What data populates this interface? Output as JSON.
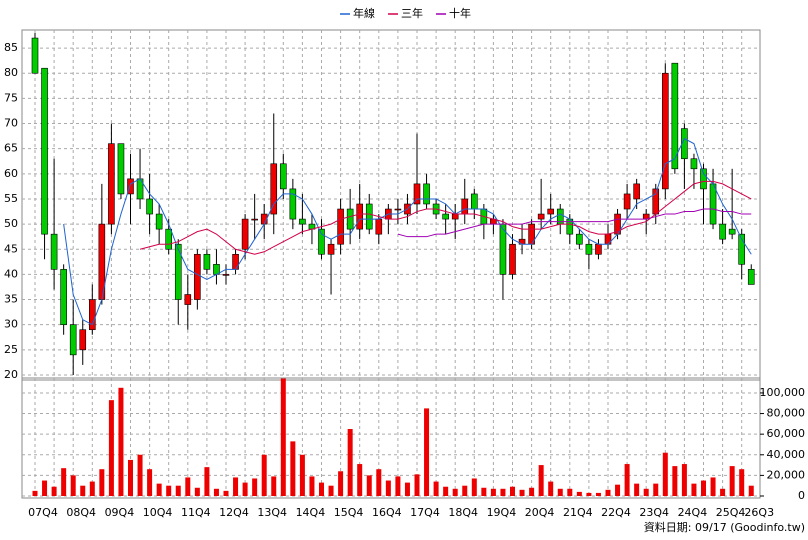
{
  "chart_data": {
    "type": "candlestick",
    "categories": [
      "07Q4",
      null,
      null,
      null,
      "08Q4",
      null,
      null,
      null,
      "09Q4",
      null,
      null,
      null,
      "10Q4",
      null,
      null,
      null,
      "11Q4",
      null,
      null,
      null,
      "12Q4",
      null,
      null,
      null,
      "13Q4",
      null,
      null,
      null,
      "14Q4",
      null,
      null,
      null,
      "15Q4",
      null,
      null,
      null,
      "16Q4",
      null,
      null,
      null,
      "17Q4",
      null,
      null,
      null,
      "18Q4",
      null,
      null,
      null,
      "19Q4",
      null,
      null,
      null,
      "20Q4",
      null,
      null,
      null,
      "21Q4",
      null,
      null,
      null,
      "22Q4",
      null,
      null,
      null,
      "23Q4",
      null,
      null,
      null,
      "24Q4",
      null,
      null,
      null,
      "25Q4",
      null,
      null,
      "26Q3"
    ],
    "open": [
      87,
      81,
      48,
      41,
      30,
      25,
      29,
      35,
      50,
      66,
      56,
      59,
      55,
      52,
      49,
      46,
      34,
      35,
      44,
      42,
      40,
      41,
      45,
      51,
      50,
      52,
      62,
      57,
      51,
      50,
      49,
      44,
      46,
      53,
      49,
      54,
      48,
      51,
      53,
      52,
      54,
      58,
      54,
      52,
      51,
      52,
      56,
      53,
      50,
      50,
      40,
      46,
      46,
      51,
      52,
      53,
      51,
      48,
      46,
      44,
      46,
      48,
      53,
      55,
      51,
      52,
      57,
      82,
      69,
      63,
      61,
      58,
      50,
      49,
      48,
      41
    ],
    "high": [
      88,
      81,
      63,
      42,
      35,
      31,
      38,
      58,
      70,
      66,
      64,
      65,
      60,
      54,
      51,
      47,
      40,
      45,
      45,
      45,
      42,
      45,
      52,
      56,
      54,
      72,
      64,
      59,
      56,
      52,
      51,
      47,
      55,
      57,
      58,
      56,
      52,
      54,
      55,
      56,
      68,
      60,
      55,
      54,
      54,
      59,
      57,
      54,
      52,
      51,
      48,
      50,
      51,
      59,
      56,
      54,
      52,
      49,
      47,
      47,
      50,
      53,
      58,
      59,
      53,
      58,
      82,
      82,
      70,
      64,
      62,
      61,
      53,
      61,
      49,
      42
    ],
    "low": [
      80,
      43,
      37,
      28,
      20,
      22,
      28,
      34,
      48,
      55,
      50,
      53,
      48,
      46,
      44,
      30,
      29,
      33,
      40,
      38,
      38,
      40,
      43,
      47,
      47,
      48,
      55,
      49,
      48,
      46,
      43,
      36,
      44,
      46,
      47,
      48,
      46,
      48,
      50,
      50,
      52,
      53,
      51,
      48,
      47,
      50,
      51,
      47,
      48,
      35,
      39,
      44,
      45,
      49,
      50,
      48,
      46,
      45,
      41,
      43,
      45,
      47,
      51,
      53,
      48,
      50,
      55,
      60,
      57,
      57,
      50,
      49,
      46,
      47,
      39,
      38
    ],
    "close": [
      80,
      48,
      41,
      30,
      24,
      29,
      35,
      50,
      66,
      56,
      59,
      55,
      52,
      49,
      45,
      35,
      36,
      44,
      41,
      40,
      40,
      44,
      51,
      51,
      52,
      62,
      57,
      51,
      50,
      49,
      44,
      46,
      53,
      49,
      54,
      49,
      51,
      53,
      53,
      54,
      58,
      54,
      52,
      51,
      52,
      55,
      53,
      50,
      51,
      40,
      46,
      47,
      50,
      52,
      53,
      50,
      48,
      46,
      44,
      46,
      48,
      52,
      56,
      58,
      52,
      57,
      80,
      61,
      63,
      61,
      57,
      50,
      47,
      48,
      42,
      38
    ],
    "up_color": "#ee0000",
    "down_color": "#00cc00",
    "ylim": [
      19,
      88.6
    ],
    "yticks": [
      20,
      25,
      30,
      35,
      40,
      45,
      50,
      55,
      60,
      65,
      70,
      75,
      80,
      85
    ],
    "grid": true,
    "series": [
      {
        "name": "年線",
        "color": "#1e64d2",
        "values": [
          null,
          null,
          null,
          50,
          36,
          31,
          30,
          35,
          45,
          52,
          58,
          59,
          56,
          54,
          50,
          45,
          41,
          40,
          39,
          40,
          41,
          41,
          44,
          47,
          50,
          54,
          56,
          56,
          55,
          52,
          48,
          47,
          48,
          48,
          51,
          51,
          51,
          52,
          52,
          53,
          55,
          55,
          55,
          54,
          52,
          53,
          53,
          53,
          52,
          49,
          47,
          46,
          46,
          49,
          51,
          52,
          51,
          49,
          47,
          46,
          46,
          48,
          51,
          54,
          55,
          56,
          62,
          63,
          67,
          66,
          60,
          58,
          54,
          51,
          47,
          44
        ]
      },
      {
        "name": "三年",
        "color": "#d2004b",
        "values": [
          null,
          null,
          null,
          null,
          null,
          null,
          null,
          null,
          null,
          null,
          null,
          45,
          45.5,
          46,
          46,
          46.5,
          47.5,
          48.5,
          49,
          48,
          46.5,
          45,
          44.5,
          44,
          44.5,
          45.5,
          46.5,
          47.5,
          48.5,
          49,
          49.5,
          50,
          51,
          51.5,
          52,
          52,
          51.5,
          51,
          51,
          51.5,
          52.5,
          53,
          53,
          52.5,
          52,
          52,
          52,
          51.5,
          51,
          50.5,
          49.5,
          49,
          49,
          49,
          49.5,
          50,
          50,
          49.5,
          48.5,
          48,
          48,
          48.5,
          49.5,
          50,
          50.5,
          52,
          53.5,
          55,
          56.5,
          58,
          58.5,
          58.5,
          58,
          57,
          56,
          55
        ]
      },
      {
        "name": "十年",
        "color": "#a000b4",
        "values": [
          null,
          null,
          null,
          null,
          null,
          null,
          null,
          null,
          null,
          null,
          null,
          null,
          null,
          null,
          null,
          null,
          null,
          null,
          null,
          null,
          null,
          null,
          null,
          null,
          null,
          null,
          null,
          null,
          null,
          null,
          null,
          null,
          null,
          null,
          null,
          null,
          null,
          null,
          48,
          47.5,
          47.5,
          47.5,
          48,
          48,
          48.5,
          49,
          49.5,
          50,
          50,
          50,
          50,
          50,
          50.5,
          50.5,
          50.5,
          50.5,
          50.5,
          50.5,
          50.5,
          50.5,
          50.5,
          51,
          51,
          51,
          51,
          51.5,
          52,
          52,
          52.5,
          52.5,
          53,
          53,
          52.5,
          52.5,
          52,
          52
        ]
      }
    ],
    "volume": {
      "color": "#ee0000",
      "values": [
        5000,
        15000,
        9000,
        27000,
        20000,
        10000,
        14000,
        26000,
        93000,
        105000,
        35000,
        40000,
        26000,
        12000,
        10000,
        10000,
        18000,
        8000,
        28000,
        7000,
        5000,
        18000,
        13000,
        17000,
        40000,
        19000,
        114000,
        53000,
        40000,
        19000,
        13000,
        10000,
        24000,
        65000,
        31000,
        20000,
        26000,
        15000,
        19000,
        13000,
        21000,
        85000,
        14000,
        9000,
        7000,
        10000,
        17000,
        8000,
        7000,
        7000,
        9000,
        6000,
        8000,
        30000,
        14000,
        7000,
        7000,
        4000,
        3000,
        3000,
        6000,
        11000,
        31000,
        12000,
        7000,
        12000,
        42000,
        29000,
        31000,
        12000,
        15000,
        18000,
        7000,
        29000,
        26000,
        10000
      ],
      "ylim": [
        0,
        114500
      ],
      "yticks": [
        0,
        {
          "value": 20000,
          "label": "20,000"
        },
        {
          "value": 40000,
          "label": "40,000"
        },
        {
          "value": 60000,
          "label": "60,000"
        },
        {
          "value": 80000,
          "label": "80,000"
        },
        {
          "value": 100000,
          "label": "100,000"
        }
      ]
    },
    "footer": "資料日期: 09/17 (Goodinfo.tw)"
  }
}
